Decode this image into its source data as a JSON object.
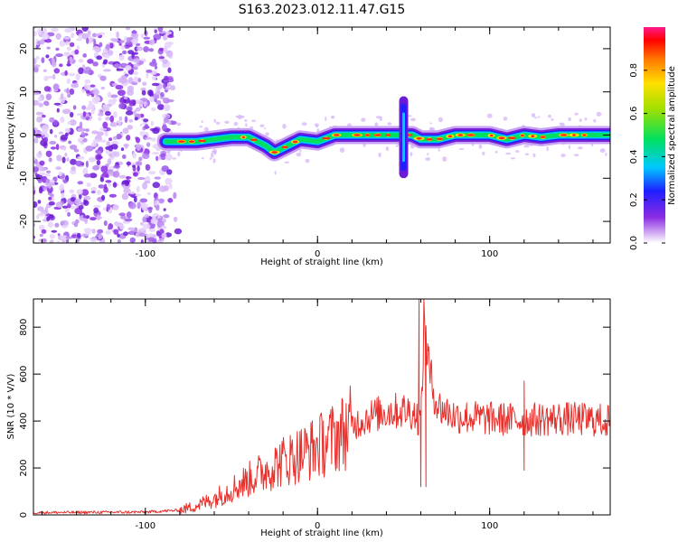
{
  "title": "S163.2023.012.11.47.G15",
  "chart_data": [
    {
      "type": "heatmap",
      "xlabel": "Height of straight line (km)",
      "ylabel": "Frequency (Hz)",
      "xlim": [
        -165,
        170
      ],
      "ylim": [
        -25,
        25
      ],
      "xticks": [
        -100,
        0,
        100
      ],
      "yticks": [
        -20,
        -10,
        0,
        10,
        20
      ],
      "colorbar": {
        "label": "Normalized spectral amplitude",
        "range": [
          0.0,
          1.0
        ],
        "ticks": [
          0.0,
          0.2,
          0.4,
          0.6,
          0.8
        ]
      },
      "noise_region": {
        "x_range": [
          -165,
          -85
        ],
        "y_range": [
          -25,
          25
        ]
      },
      "ridge_line": {
        "x": [
          -88,
          -70,
          -50,
          -40,
          -30,
          -25,
          -20,
          -10,
          0,
          10,
          20,
          30,
          40,
          48,
          55,
          60,
          70,
          80,
          90,
          100,
          110,
          120,
          130,
          140,
          150,
          160,
          170
        ],
        "y": [
          -1.5,
          -1.5,
          -0.5,
          -0.5,
          -2.5,
          -4,
          -3,
          -1,
          -1.5,
          0,
          0,
          0,
          0,
          0,
          0,
          -1,
          -1,
          0,
          0,
          0,
          -1,
          0,
          -0.5,
          0,
          0,
          0,
          0
        ]
      },
      "vertical_feature": {
        "x": 50,
        "y_range": [
          -10,
          9
        ]
      }
    },
    {
      "type": "line",
      "xlabel": "Height of straight line (km)",
      "ylabel": "SNR (10 * V/V)",
      "xlim": [
        -165,
        170
      ],
      "ylim": [
        0,
        920
      ],
      "xticks": [
        -100,
        0,
        100
      ],
      "yticks": [
        0,
        200,
        400,
        600,
        800
      ],
      "color": "#e8312c",
      "envelope": {
        "x": [
          -165,
          -100,
          -80,
          -70,
          -60,
          -50,
          -40,
          -30,
          -20,
          -10,
          0,
          10,
          20,
          30,
          40,
          50,
          55,
          60,
          62,
          65,
          70,
          80,
          100,
          120,
          140,
          160,
          170
        ],
        "y": [
          10,
          12,
          20,
          40,
          70,
          110,
          150,
          190,
          230,
          260,
          290,
          330,
          380,
          420,
          440,
          445,
          440,
          400,
          850,
          600,
          460,
          420,
          410,
          405,
          410,
          405,
          400
        ]
      },
      "spikes": [
        {
          "x": 59,
          "y": 920
        },
        {
          "x": 60,
          "y": 120
        },
        {
          "x": 64,
          "y": 730
        },
        {
          "x": 63,
          "y": 120
        },
        {
          "x": 120,
          "y": 190
        },
        {
          "x": 120,
          "y": 570
        }
      ]
    }
  ]
}
